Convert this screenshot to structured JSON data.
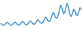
{
  "chart_data": {
    "type": "line",
    "x": [
      0,
      1,
      2,
      3,
      4,
      5,
      6,
      7,
      8,
      9,
      10,
      11,
      12,
      13,
      14,
      15,
      16,
      17,
      18,
      19,
      20,
      21,
      22,
      23,
      24,
      25,
      26,
      27,
      28,
      29,
      30,
      31,
      32,
      33,
      34,
      35,
      36,
      37,
      38,
      39,
      40,
      41,
      42,
      43,
      44,
      45,
      46,
      47,
      48,
      49,
      50,
      51,
      52,
      53,
      54,
      55,
      56,
      57,
      58,
      59,
      60,
      61,
      62,
      63
    ],
    "values": [
      18,
      14,
      10,
      12,
      17,
      22,
      19,
      13,
      10,
      12,
      18,
      23,
      20,
      14,
      11,
      13,
      19,
      25,
      22,
      15,
      12,
      14,
      21,
      27,
      24,
      17,
      14,
      17,
      25,
      32,
      28,
      20,
      18,
      22,
      33,
      42,
      37,
      27,
      25,
      32,
      48,
      60,
      52,
      40,
      38,
      50,
      72,
      88,
      75,
      55,
      58,
      80,
      95,
      78,
      52,
      45,
      55,
      72,
      66,
      50,
      48,
      62,
      78,
      70
    ],
    "xlim": [
      0,
      63
    ],
    "ylim": [
      0,
      100
    ],
    "color": "#3a8fd4",
    "tick_labels": false,
    "grid": false
  }
}
